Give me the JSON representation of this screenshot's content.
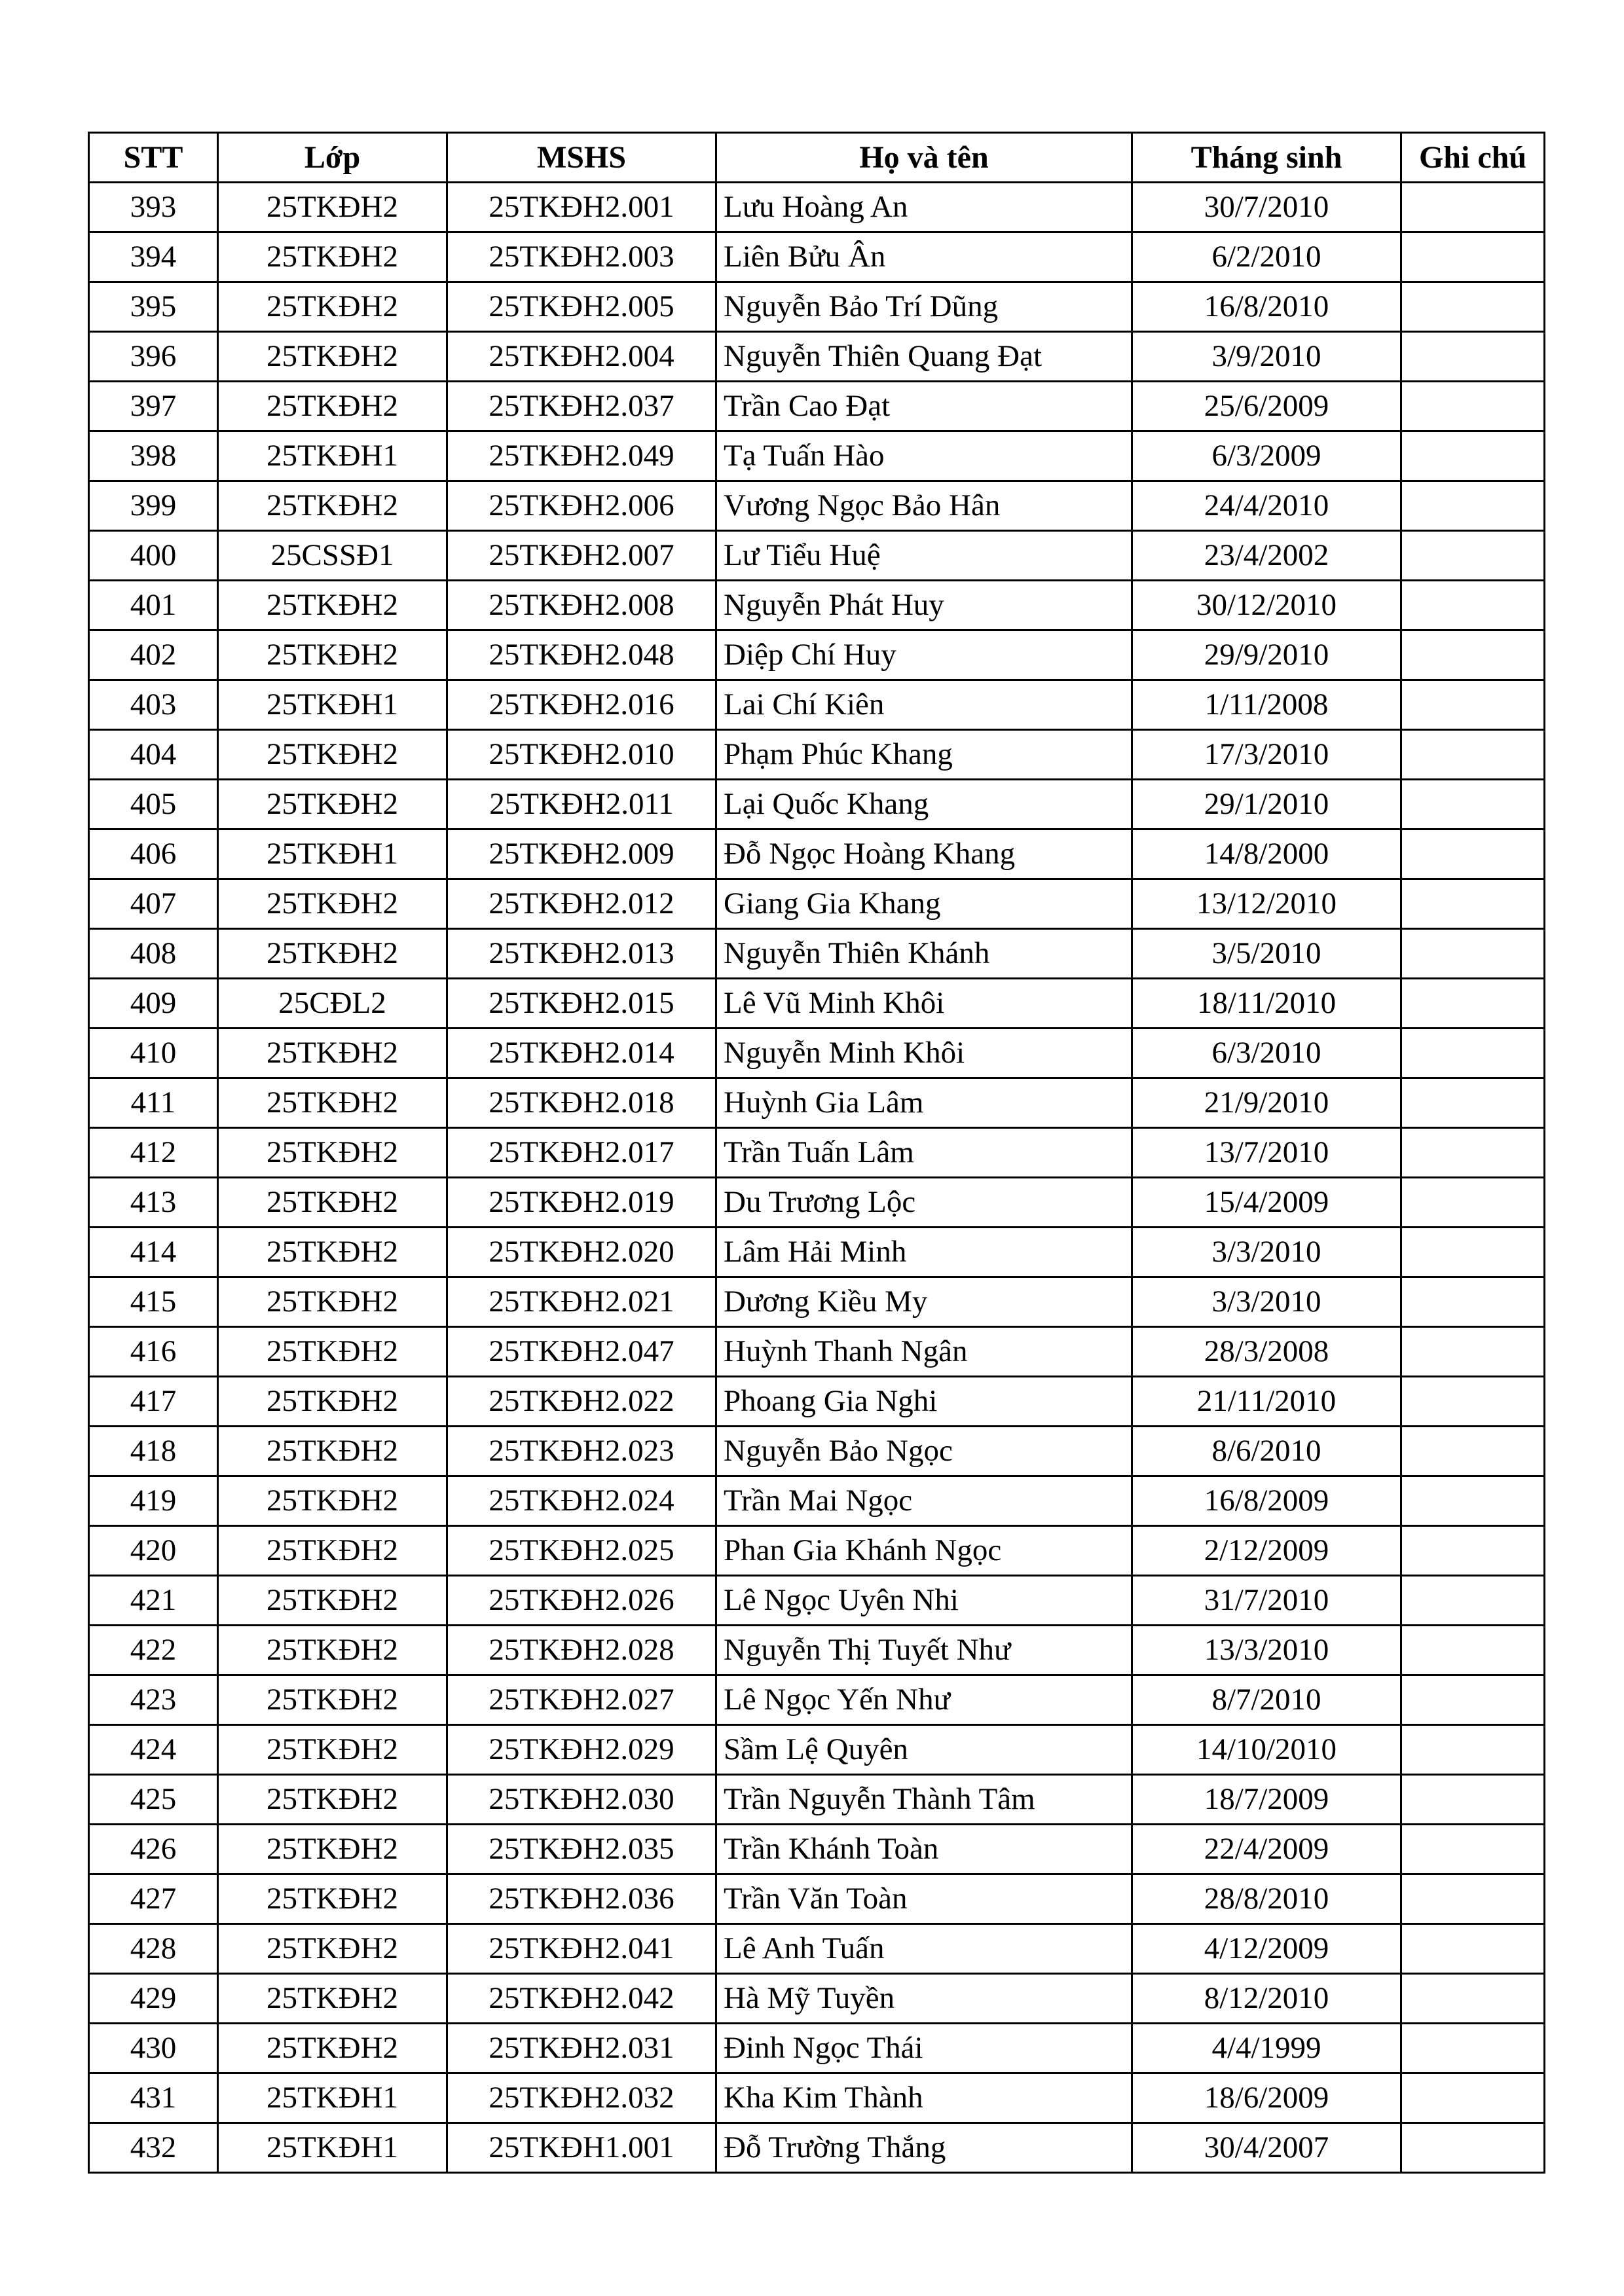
{
  "table": {
    "headers": [
      "STT",
      "Lớp",
      "MSHS",
      "Họ và tên",
      "Tháng sinh",
      "Ghi chú"
    ],
    "rows": [
      [
        "393",
        "25TKĐH2",
        "25TKĐH2.001",
        "Lưu Hoàng An",
        "30/7/2010",
        ""
      ],
      [
        "394",
        "25TKĐH2",
        "25TKĐH2.003",
        "Liên Bửu Ân",
        "6/2/2010",
        ""
      ],
      [
        "395",
        "25TKĐH2",
        "25TKĐH2.005",
        "Nguyễn Bảo Trí Dũng",
        "16/8/2010",
        ""
      ],
      [
        "396",
        "25TKĐH2",
        "25TKĐH2.004",
        "Nguyễn Thiên Quang Đạt",
        "3/9/2010",
        ""
      ],
      [
        "397",
        "25TKĐH2",
        "25TKĐH2.037",
        "Trần Cao Đạt",
        "25/6/2009",
        ""
      ],
      [
        "398",
        "25TKĐH1",
        "25TKĐH2.049",
        "Tạ Tuấn Hào",
        "6/3/2009",
        ""
      ],
      [
        "399",
        "25TKĐH2",
        "25TKĐH2.006",
        "Vương Ngọc Bảo Hân",
        "24/4/2010",
        ""
      ],
      [
        "400",
        "25CSSĐ1",
        "25TKĐH2.007",
        "Lư Tiểu Huệ",
        "23/4/2002",
        ""
      ],
      [
        "401",
        "25TKĐH2",
        "25TKĐH2.008",
        "Nguyễn Phát Huy",
        "30/12/2010",
        ""
      ],
      [
        "402",
        "25TKĐH2",
        "25TKĐH2.048",
        "Diệp Chí Huy",
        "29/9/2010",
        ""
      ],
      [
        "403",
        "25TKĐH1",
        "25TKĐH2.016",
        "Lai Chí Kiên",
        "1/11/2008",
        ""
      ],
      [
        "404",
        "25TKĐH2",
        "25TKĐH2.010",
        "Phạm Phúc Khang",
        "17/3/2010",
        ""
      ],
      [
        "405",
        "25TKĐH2",
        "25TKĐH2.011",
        "Lại Quốc Khang",
        "29/1/2010",
        ""
      ],
      [
        "406",
        "25TKĐH1",
        "25TKĐH2.009",
        "Đỗ Ngọc Hoàng Khang",
        "14/8/2000",
        ""
      ],
      [
        "407",
        "25TKĐH2",
        "25TKĐH2.012",
        "Giang Gia Khang",
        "13/12/2010",
        ""
      ],
      [
        "408",
        "25TKĐH2",
        "25TKĐH2.013",
        "Nguyễn Thiên Khánh",
        "3/5/2010",
        ""
      ],
      [
        "409",
        "25CĐL2",
        "25TKĐH2.015",
        "Lê Vũ Minh Khôi",
        "18/11/2010",
        ""
      ],
      [
        "410",
        "25TKĐH2",
        "25TKĐH2.014",
        "Nguyễn Minh Khôi",
        "6/3/2010",
        ""
      ],
      [
        "411",
        "25TKĐH2",
        "25TKĐH2.018",
        "Huỳnh Gia Lâm",
        "21/9/2010",
        ""
      ],
      [
        "412",
        "25TKĐH2",
        "25TKĐH2.017",
        "Trần Tuấn Lâm",
        "13/7/2010",
        ""
      ],
      [
        "413",
        "25TKĐH2",
        "25TKĐH2.019",
        "Du Trương Lộc",
        "15/4/2009",
        ""
      ],
      [
        "414",
        "25TKĐH2",
        "25TKĐH2.020",
        "Lâm Hải Minh",
        "3/3/2010",
        ""
      ],
      [
        "415",
        "25TKĐH2",
        "25TKĐH2.021",
        "Dương Kiều My",
        "3/3/2010",
        ""
      ],
      [
        "416",
        "25TKĐH2",
        "25TKĐH2.047",
        "Huỳnh Thanh Ngân",
        "28/3/2008",
        ""
      ],
      [
        "417",
        "25TKĐH2",
        "25TKĐH2.022",
        "Phoang Gia Nghi",
        "21/11/2010",
        ""
      ],
      [
        "418",
        "25TKĐH2",
        "25TKĐH2.023",
        "Nguyễn Bảo Ngọc",
        "8/6/2010",
        ""
      ],
      [
        "419",
        "25TKĐH2",
        "25TKĐH2.024",
        "Trần Mai Ngọc",
        "16/8/2009",
        ""
      ],
      [
        "420",
        "25TKĐH2",
        "25TKĐH2.025",
        "Phan Gia Khánh Ngọc",
        "2/12/2009",
        ""
      ],
      [
        "421",
        "25TKĐH2",
        "25TKĐH2.026",
        "Lê Ngọc Uyên Nhi",
        "31/7/2010",
        ""
      ],
      [
        "422",
        "25TKĐH2",
        "25TKĐH2.028",
        "Nguyễn Thị Tuyết Như",
        "13/3/2010",
        ""
      ],
      [
        "423",
        "25TKĐH2",
        "25TKĐH2.027",
        "Lê Ngọc Yến Như",
        "8/7/2010",
        ""
      ],
      [
        "424",
        "25TKĐH2",
        "25TKĐH2.029",
        "Sầm Lệ Quyên",
        "14/10/2010",
        ""
      ],
      [
        "425",
        "25TKĐH2",
        "25TKĐH2.030",
        "Trần Nguyễn Thành Tâm",
        "18/7/2009",
        ""
      ],
      [
        "426",
        "25TKĐH2",
        "25TKĐH2.035",
        "Trần Khánh Toàn",
        "22/4/2009",
        ""
      ],
      [
        "427",
        "25TKĐH2",
        "25TKĐH2.036",
        "Trần Văn Toàn",
        "28/8/2010",
        ""
      ],
      [
        "428",
        "25TKĐH2",
        "25TKĐH2.041",
        "Lê Anh Tuấn",
        "4/12/2009",
        ""
      ],
      [
        "429",
        "25TKĐH2",
        "25TKĐH2.042",
        "Hà Mỹ Tuyền",
        "8/12/2010",
        ""
      ],
      [
        "430",
        "25TKĐH2",
        "25TKĐH2.031",
        "Đinh Ngọc Thái",
        "4/4/1999",
        ""
      ],
      [
        "431",
        "25TKĐH1",
        "25TKĐH2.032",
        "Kha Kim Thành",
        "18/6/2009",
        ""
      ],
      [
        "432",
        "25TKĐH1",
        "25TKĐH1.001",
        "Đỗ Trường Thắng",
        "30/4/2007",
        ""
      ]
    ]
  }
}
